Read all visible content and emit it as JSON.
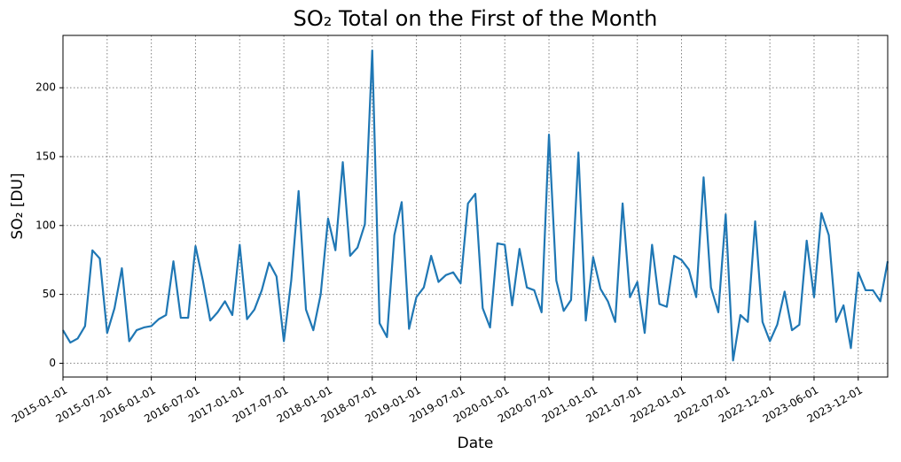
{
  "chart_data": {
    "type": "line",
    "title": "SO₂ Total on the First of the Month",
    "x_label": "Date",
    "y_label": "SO₂ [DU]",
    "categories": [
      "2015-01-01",
      null,
      null,
      null,
      null,
      null,
      "2015-07-01",
      null,
      null,
      null,
      null,
      null,
      "2016-01-01",
      null,
      null,
      null,
      null,
      null,
      "2016-07-01",
      null,
      null,
      null,
      null,
      null,
      "2017-01-01",
      null,
      null,
      null,
      null,
      null,
      "2017-07-01",
      null,
      null,
      null,
      null,
      null,
      "2018-01-01",
      null,
      null,
      null,
      null,
      null,
      "2018-07-01",
      null,
      null,
      null,
      null,
      null,
      "2019-01-01",
      null,
      null,
      null,
      null,
      null,
      "2019-07-01",
      null,
      null,
      null,
      null,
      null,
      "2020-01-01",
      null,
      null,
      null,
      null,
      null,
      "2020-07-01",
      null,
      null,
      null,
      null,
      null,
      "2021-01-01",
      null,
      null,
      null,
      null,
      null,
      "2021-07-01",
      null,
      null,
      null,
      null,
      null,
      "2022-01-01",
      null,
      null,
      null,
      null,
      null,
      "2022-07-01",
      null,
      null,
      null,
      null,
      null,
      "2022-12-01",
      null,
      null,
      null,
      null,
      null,
      "2023-06-01",
      null,
      null,
      null,
      null,
      null,
      "2023-12-01",
      null,
      null,
      null,
      null
    ],
    "series": [
      {
        "name": "SO₂",
        "color": "#1f77b4",
        "values": [
          24,
          15,
          18,
          27,
          82,
          76,
          22,
          40,
          69,
          16,
          24,
          26,
          27,
          32,
          35,
          74,
          33,
          33,
          85,
          60,
          31,
          37,
          45,
          35,
          86,
          32,
          39,
          53,
          73,
          63,
          16,
          60,
          125,
          39,
          24,
          50,
          105,
          82,
          146,
          78,
          84,
          101,
          227,
          29,
          19,
          93,
          117,
          25,
          48,
          55,
          78,
          59,
          64,
          66,
          58,
          116,
          123,
          40,
          26,
          87,
          86,
          42,
          83,
          55,
          53,
          37,
          166,
          60,
          38,
          46,
          153,
          31,
          77,
          54,
          45,
          30,
          116,
          48,
          59,
          22,
          86,
          43,
          41,
          78,
          75,
          68,
          48,
          135,
          55,
          37,
          108,
          2,
          35,
          30,
          103,
          30,
          16,
          28,
          52,
          24,
          28,
          89,
          48,
          109,
          93,
          30,
          42,
          11,
          66,
          53,
          53,
          45,
          74
        ]
      }
    ],
    "ylim": [
      -10,
      238
    ],
    "yticks": [
      0,
      50,
      100,
      150,
      200
    ],
    "grid": true
  }
}
